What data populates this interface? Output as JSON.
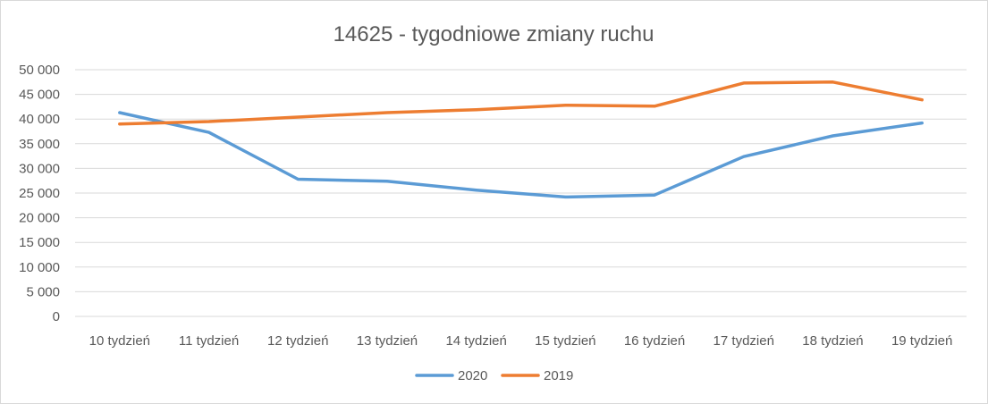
{
  "chart_data": {
    "type": "line",
    "title": "14625 - tygodniowe zmiany ruchu",
    "xlabel": "",
    "ylabel": "",
    "categories": [
      "10 tydzień",
      "11 tydzień",
      "12 tydzień",
      "13 tydzień",
      "14 tydzień",
      "15 tydzień",
      "16 tydzień",
      "17 tydzień",
      "18 tydzień",
      "19 tydzień"
    ],
    "ylim": [
      0,
      50000
    ],
    "yticks": [
      0,
      5000,
      10000,
      15000,
      20000,
      25000,
      30000,
      35000,
      40000,
      45000,
      50000
    ],
    "ytick_labels": [
      "0",
      "5 000",
      "10 000",
      "15 000",
      "20 000",
      "25 000",
      "30 000",
      "35 000",
      "40 000",
      "45 000",
      "50 000"
    ],
    "grid": true,
    "legend_position": "bottom",
    "series": [
      {
        "name": "2020",
        "color": "#5b9bd5",
        "values": [
          41300,
          37300,
          27800,
          27400,
          25600,
          24200,
          24600,
          32400,
          36600,
          39200
        ]
      },
      {
        "name": "2019",
        "color": "#ed7d31",
        "values": [
          39000,
          39500,
          40400,
          41300,
          41900,
          42800,
          42600,
          47300,
          47500,
          43900
        ]
      }
    ]
  }
}
